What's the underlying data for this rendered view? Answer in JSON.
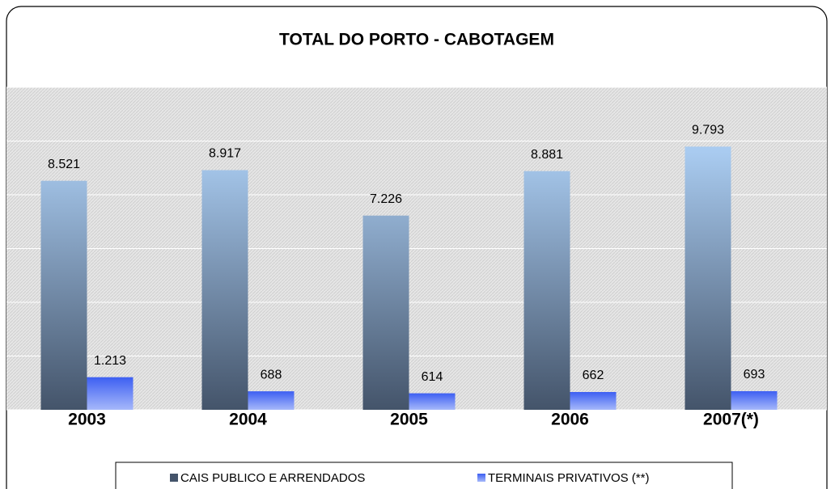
{
  "chart_data": {
    "type": "bar",
    "title": "TOTAL DO PORTO - CABOTAGEM",
    "categories": [
      "2003",
      "2004",
      "2005",
      "2006",
      "2007(*)"
    ],
    "series": [
      {
        "name": "CAIS PUBLICO E ARRENDADOS",
        "color": "#a9cbf0",
        "values": [
          8521,
          8917,
          7226,
          8881,
          9793
        ],
        "value_labels": [
          "8.521",
          "8.917",
          "7.226",
          "8.881",
          "9.793"
        ]
      },
      {
        "name": "TERMINAIS PRIVATIVOS (**)",
        "color": "#3d5ff2",
        "values": [
          1213,
          688,
          614,
          662,
          693
        ],
        "value_labels": [
          "1.213",
          "688",
          "614",
          "662",
          "693"
        ]
      }
    ],
    "ylim": [
      0,
      12000
    ],
    "yticks": [
      0,
      2000,
      4000,
      6000,
      8000,
      10000,
      12000
    ],
    "grid": true,
    "legend": "bottom"
  }
}
